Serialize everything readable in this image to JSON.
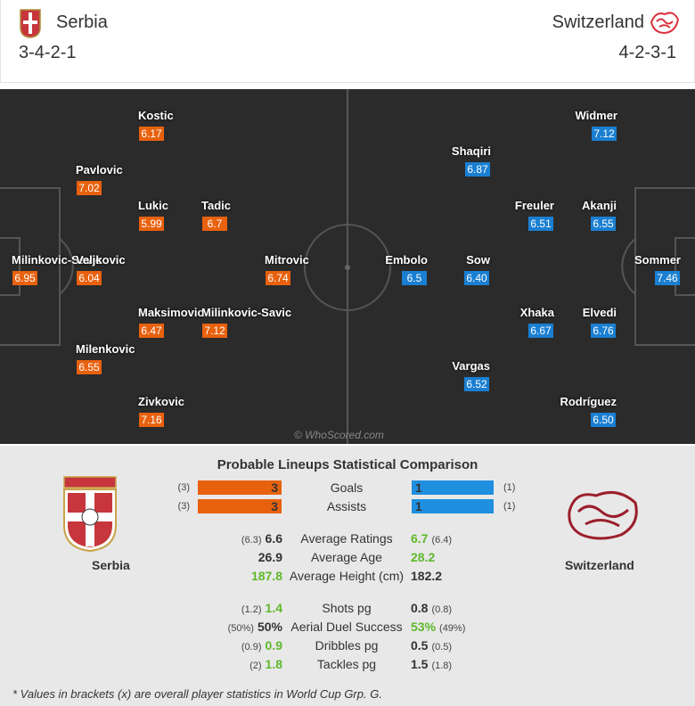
{
  "header": {
    "home": {
      "name": "Serbia",
      "formation": "3-4-2-1"
    },
    "away": {
      "name": "Switzerland",
      "formation": "4-2-3-1"
    }
  },
  "pitch": {
    "home_players": [
      {
        "name": "Kostic",
        "rating": "6.17"
      },
      {
        "name": "Pavlovic",
        "rating": "7.02"
      },
      {
        "name": "Lukic",
        "rating": "5.99"
      },
      {
        "name": "Tadic",
        "rating": "6.7"
      },
      {
        "name": "Milinkovic-Savic",
        "rating": "6.95"
      },
      {
        "name": "Veljkovic",
        "rating": "6.04"
      },
      {
        "name": "Mitrovic",
        "rating": "6.74"
      },
      {
        "name": "Maksimovic",
        "rating": "6.47"
      },
      {
        "name": "Milinkovic-Savic",
        "rating": "7.12"
      },
      {
        "name": "Milenkovic",
        "rating": "6.55"
      },
      {
        "name": "Zivkovic",
        "rating": "7.16"
      }
    ],
    "away_players": [
      {
        "name": "Widmer",
        "rating": "7.12"
      },
      {
        "name": "Shaqiri",
        "rating": "6.87"
      },
      {
        "name": "Freuler",
        "rating": "6.51"
      },
      {
        "name": "Akanji",
        "rating": "6.55"
      },
      {
        "name": "Embolo",
        "rating": "6.5"
      },
      {
        "name": "Sow",
        "rating": "6.40"
      },
      {
        "name": "Sommer",
        "rating": "7.46"
      },
      {
        "name": "Xhaka",
        "rating": "6.67"
      },
      {
        "name": "Elvedi",
        "rating": "6.76"
      },
      {
        "name": "Vargas",
        "rating": "6.52"
      },
      {
        "name": "Rodríguez",
        "rating": "6.50"
      }
    ],
    "watermark": "© WhoScored.com"
  },
  "comparison": {
    "title": "Probable Lineups Statistical Comparison",
    "home_team": "Serbia",
    "away_team": "Switzerland",
    "bar_rows": [
      {
        "label": "Goals",
        "home_overall": "(3)",
        "home": "3",
        "away": "1",
        "away_overall": "(1)"
      },
      {
        "label": "Assists",
        "home_overall": "(3)",
        "home": "3",
        "away": "1",
        "away_overall": "(1)"
      }
    ],
    "rows": [
      {
        "label": "Average Ratings",
        "home_overall": "(6.3)",
        "home": "6.6",
        "away": "6.7",
        "away_overall": "(6.4)",
        "better": "away"
      },
      {
        "label": "Average Age",
        "home": "26.9",
        "away": "28.2",
        "better": "away"
      },
      {
        "label": "Average Height (cm)",
        "home": "187.8",
        "away": "182.2",
        "better": "home"
      },
      {
        "label": "Shots pg",
        "home_overall": "(1.2)",
        "home": "1.4",
        "away": "0.8",
        "away_overall": "(0.8)",
        "better": "home"
      },
      {
        "label": "Aerial Duel Success",
        "home_overall": "(50%)",
        "home": "50%",
        "away": "53%",
        "away_overall": "(49%)",
        "better": "away"
      },
      {
        "label": "Dribbles pg",
        "home_overall": "(0.9)",
        "home": "0.9",
        "away": "0.5",
        "away_overall": "(0.5)",
        "better": "home"
      },
      {
        "label": "Tackles pg",
        "home_overall": "(2)",
        "home": "1.8",
        "away": "1.5",
        "away_overall": "(1.8)",
        "better": "home"
      }
    ],
    "note": "* Values in brackets (x) are overall player statistics in World Cup Grp. G."
  }
}
